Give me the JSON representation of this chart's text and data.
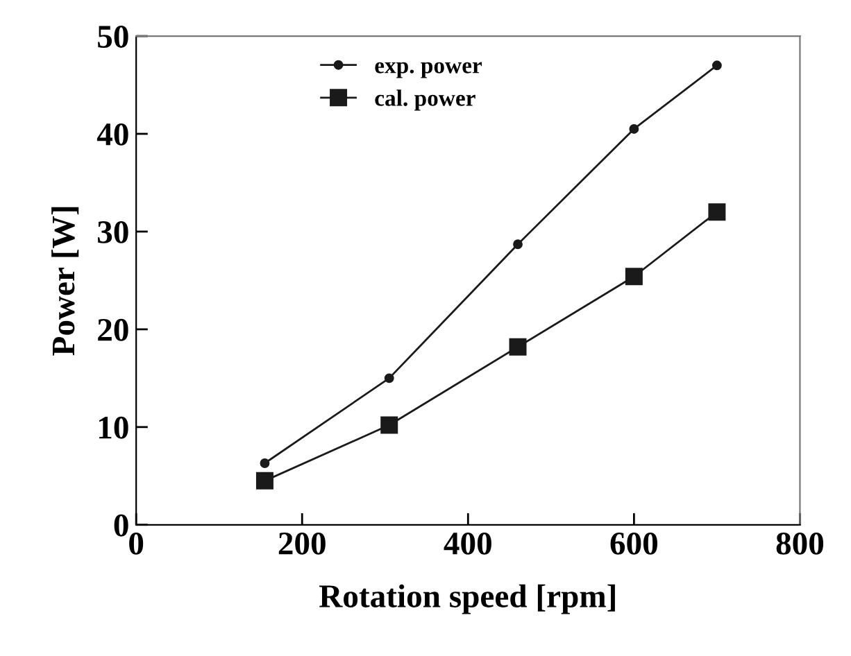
{
  "chart_data": {
    "type": "line",
    "xlabel": "Rotation speed [rpm]",
    "ylabel": "Power [W]",
    "x": [
      155,
      305,
      460,
      600,
      700
    ],
    "series": [
      {
        "name": "exp. power",
        "color": "#1a1a1a",
        "marker": "circle",
        "values": [
          6.3,
          15,
          28.7,
          40.5,
          47
        ]
      },
      {
        "name": "cal. power",
        "color": "#1a1a1a",
        "marker": "square",
        "values": [
          4.5,
          10.2,
          18.2,
          25.4,
          32
        ]
      }
    ],
    "xlim": [
      0,
      800
    ],
    "xticks": [
      0,
      200,
      400,
      600,
      800
    ],
    "ylim": [
      0,
      50
    ],
    "yticks": [
      0,
      10,
      20,
      30,
      40,
      50
    ],
    "grid": false,
    "legend": "top",
    "line_style": "solid"
  }
}
